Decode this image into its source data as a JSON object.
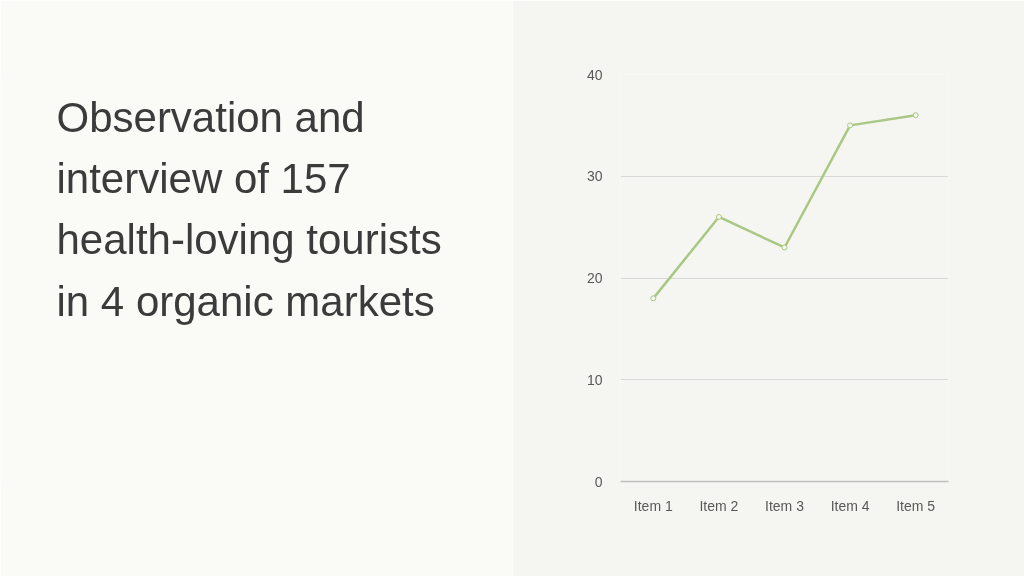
{
  "chart_data": {
    "type": "line",
    "title": "Observation and\ninterview of 157\nhealth-loving tourists\nin 4 organic markets",
    "categories": [
      "Item 1",
      "Item 2",
      "Item 3",
      "Item 4",
      "Item 5"
    ],
    "series": [
      {
        "color": "#a8c883",
        "values": [
          18,
          26,
          23,
          35,
          36
        ]
      }
    ],
    "ylim": [
      0,
      40
    ],
    "yticks": [
      0,
      10,
      20,
      30,
      40
    ],
    "grid": "y",
    "marker": "circle",
    "line_style": "solid"
  }
}
